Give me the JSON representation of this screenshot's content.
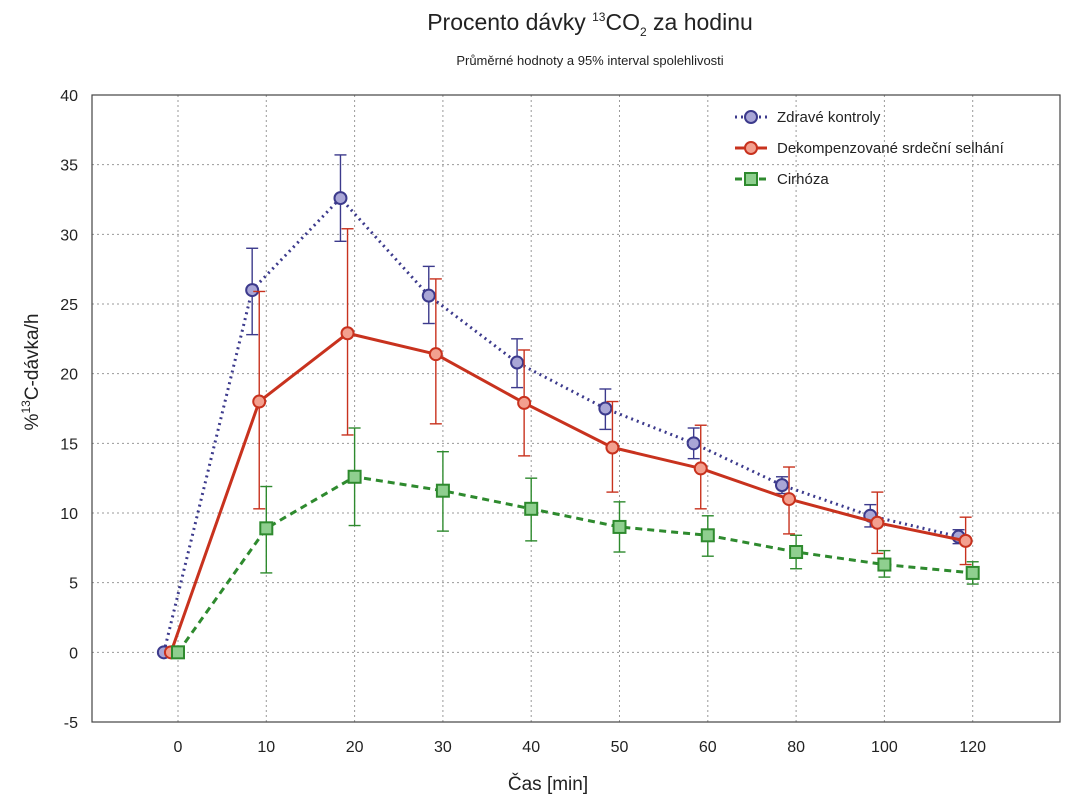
{
  "chart_data": {
    "type": "line",
    "title": {
      "prefix": "Procento dávky ",
      "sup": "13",
      "main": "CO",
      "sub": "2",
      "suffix": " za hodinu"
    },
    "subtitle": "Průměrné hodnoty a 95% interval spolehlivosti",
    "xlabel": "Čas [min]",
    "ylabel": {
      "prefix": "%",
      "sup": "13",
      "suffix": "C-dávka/h"
    },
    "categories": [
      "0",
      "10",
      "20",
      "30",
      "40",
      "50",
      "60",
      "80",
      "100",
      "120"
    ],
    "ylim": [
      -5,
      40
    ],
    "yticks": [
      "-5",
      "0",
      "5",
      "10",
      "15",
      "20",
      "25",
      "30",
      "35",
      "40"
    ],
    "grid": true,
    "legend_position": "top-right",
    "series": [
      {
        "name": "Zdravé kontroly",
        "color": "#3c3a8c",
        "line_style": "dotted",
        "marker": "circle",
        "offset": -0.16,
        "values": [
          0,
          26.0,
          32.6,
          25.6,
          20.8,
          17.5,
          15.0,
          12.0,
          9.8,
          8.3
        ],
        "ci_low": [
          null,
          22.8,
          29.5,
          23.6,
          19.0,
          16.0,
          13.9,
          11.4,
          9.0,
          7.8
        ],
        "ci_high": [
          null,
          29.0,
          35.7,
          27.7,
          22.5,
          18.9,
          16.1,
          12.6,
          10.6,
          8.8
        ]
      },
      {
        "name": "Dekompenzované srdeční selhání",
        "color": "#c8321e",
        "line_style": "solid",
        "marker": "circle",
        "offset": -0.08,
        "values": [
          0,
          18.0,
          22.9,
          21.4,
          17.9,
          14.7,
          13.2,
          11.0,
          9.3,
          8.0
        ],
        "ci_low": [
          null,
          10.3,
          15.6,
          16.4,
          14.1,
          11.5,
          10.3,
          8.5,
          7.1,
          6.3
        ],
        "ci_high": [
          null,
          25.9,
          30.4,
          26.8,
          21.7,
          18.0,
          16.3,
          13.3,
          11.5,
          9.7
        ]
      },
      {
        "name": "Cirhóza",
        "color": "#2e8a2e",
        "line_style": "dashed",
        "marker": "square",
        "offset": 0,
        "values": [
          0,
          8.9,
          12.6,
          11.6,
          10.3,
          9.0,
          8.4,
          7.2,
          6.3,
          5.7
        ],
        "ci_low": [
          null,
          5.7,
          9.1,
          8.7,
          8.0,
          7.2,
          6.9,
          6.0,
          5.4,
          4.9
        ],
        "ci_high": [
          null,
          11.9,
          16.1,
          14.4,
          12.5,
          10.8,
          9.8,
          8.4,
          7.3,
          6.5
        ]
      }
    ]
  }
}
